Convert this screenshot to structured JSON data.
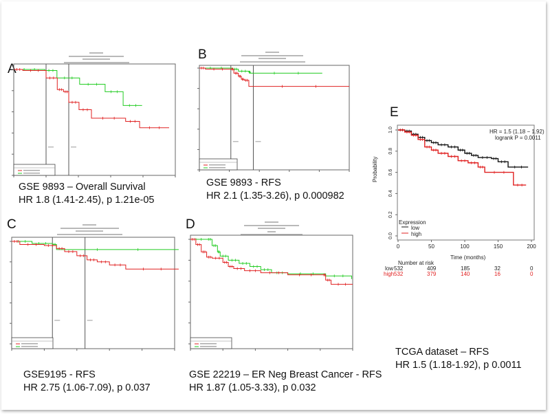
{
  "panels": [
    {
      "label": "A",
      "caption_line1": "GSE 9893 – Overall Survival",
      "caption_line2": "HR 1.8 (1.41-2.45), p 1.21e-05"
    },
    {
      "label": "B",
      "caption_line1": "GSE 9893 - RFS",
      "caption_line2": "HR 2.1 (1.35-3.26), p 0.000982"
    },
    {
      "label": "C",
      "caption_line1": "GSE9195 - RFS",
      "caption_line2": "HR 2.75 (1.06-7.09), p 0.037"
    },
    {
      "label": "D",
      "caption_line1": "GSE 22219 – ER Neg Breast Cancer - RFS",
      "caption_line2": "HR 1.87 (1.05-3.33), p 0.032"
    },
    {
      "label": "E",
      "caption_line1": "TCGA dataset – RFS",
      "caption_line2": "HR 1.5 (1.18-1.92), p 0.0011"
    }
  ],
  "colors": {
    "low_abcd": "#22cc22",
    "high": "#e02020",
    "low_e": "#111111",
    "frame": "#555555"
  },
  "chart_data": [
    {
      "type": "line",
      "panel": "A",
      "step": true,
      "xlim": [
        0,
        5000
      ],
      "ylim": [
        0,
        1
      ],
      "reference_lines_x": [
        1040,
        1770
      ],
      "series": [
        {
          "color": "#22cc22",
          "x": [
            0,
            1000,
            1390,
            2120,
            2940,
            3520,
            4130
          ],
          "y": [
            1,
            0.99,
            0.92,
            0.86,
            0.79,
            0.66,
            0.66
          ]
        },
        {
          "color": "#e02020",
          "x": [
            0,
            290,
            1040,
            1400,
            1600,
            1770,
            2100,
            2500,
            3600,
            4050,
            5000
          ],
          "y": [
            1,
            0.99,
            0.92,
            0.81,
            0.79,
            0.69,
            0.62,
            0.54,
            0.51,
            0.45,
            0.45
          ]
        }
      ]
    },
    {
      "type": "line",
      "panel": "B",
      "step": true,
      "xlim": [
        0,
        5000
      ],
      "ylim": [
        0,
        1
      ],
      "reference_lines_x": [
        1050,
        1800
      ],
      "series": [
        {
          "color": "#22cc22",
          "x": [
            0,
            1100,
            1300,
            1650,
            1700,
            4100
          ],
          "y": [
            1,
            0.99,
            0.97,
            0.96,
            0.95,
            0.95
          ]
        },
        {
          "color": "#e02020",
          "x": [
            0,
            200,
            1050,
            1150,
            1300,
            1400,
            1500,
            1650,
            5000
          ],
          "y": [
            1,
            0.99,
            0.99,
            0.95,
            0.92,
            0.89,
            0.88,
            0.82,
            0.82
          ]
        }
      ]
    },
    {
      "type": "line",
      "panel": "C",
      "step": true,
      "xlim": [
        0,
        4000
      ],
      "ylim": [
        0,
        1
      ],
      "reference_lines_x": [
        1000,
        1800
      ],
      "series": [
        {
          "color": "#22cc22",
          "x": [
            0,
            500,
            1000,
            1100,
            4100
          ],
          "y": [
            1,
            0.98,
            0.97,
            0.92,
            0.92
          ]
        },
        {
          "color": "#e02020",
          "x": [
            0,
            200,
            800,
            1100,
            1300,
            1600,
            1850,
            2100,
            2400,
            2800,
            4100
          ],
          "y": [
            1,
            0.97,
            0.96,
            0.93,
            0.9,
            0.86,
            0.82,
            0.8,
            0.77,
            0.73,
            0.73
          ]
        }
      ]
    },
    {
      "type": "line",
      "panel": "D",
      "step": true,
      "xlim": [
        0,
        300
      ],
      "ylim": [
        0,
        1
      ],
      "reference_lines_x": [],
      "series": [
        {
          "color": "#22cc22",
          "x": [
            0,
            30,
            40,
            50,
            55,
            70,
            90,
            110,
            130,
            150,
            180,
            250,
            298
          ],
          "y": [
            1,
            1,
            0.94,
            0.88,
            0.84,
            0.8,
            0.77,
            0.74,
            0.71,
            0.68,
            0.67,
            0.65,
            0.62
          ]
        },
        {
          "color": "#e02020",
          "x": [
            0,
            10,
            20,
            30,
            40,
            60,
            70,
            80,
            100,
            130,
            180,
            245,
            250,
            260,
            300
          ],
          "y": [
            1,
            0.95,
            0.88,
            0.83,
            0.82,
            0.78,
            0.74,
            0.72,
            0.7,
            0.68,
            0.66,
            0.66,
            0.61,
            0.57,
            0.57
          ]
        }
      ]
    },
    {
      "type": "line",
      "panel": "E",
      "step": true,
      "xlim": [
        0,
        200
      ],
      "ylim": [
        0,
        1
      ],
      "xlabel": "Time (months)",
      "ylabel": "Probability",
      "xticks": [
        "0",
        "50",
        "100",
        "150",
        "200"
      ],
      "yticks": [
        "0.0",
        "0.2",
        "0.4",
        "0.6",
        "0.8",
        "1.0"
      ],
      "annotation_line1": "HR = 1.5 (1.18 − 1.92)",
      "annotation_line2": "logrank P = 0.0011",
      "legend_title": "Expression",
      "legend_position": "bottom-left",
      "series": [
        {
          "name": "low",
          "color": "#111111",
          "x": [
            0,
            10,
            20,
            30,
            40,
            50,
            60,
            75,
            90,
            100,
            110,
            120,
            140,
            150,
            165,
            195
          ],
          "y": [
            1,
            0.99,
            0.96,
            0.93,
            0.9,
            0.88,
            0.86,
            0.84,
            0.81,
            0.78,
            0.76,
            0.74,
            0.73,
            0.7,
            0.65,
            0.65
          ]
        },
        {
          "name": "high",
          "color": "#e02020",
          "x": [
            0,
            10,
            20,
            30,
            40,
            50,
            60,
            75,
            90,
            105,
            120,
            130,
            173,
            192
          ],
          "y": [
            1,
            0.98,
            0.95,
            0.91,
            0.84,
            0.81,
            0.78,
            0.75,
            0.71,
            0.69,
            0.65,
            0.6,
            0.48,
            0.48
          ]
        }
      ],
      "risk_table": {
        "title": "Number at risk",
        "rows": [
          {
            "label": "low",
            "values": [
              "532",
              "409",
              "185",
              "32",
              "0"
            ]
          },
          {
            "label": "high",
            "values": [
              "532",
              "379",
              "140",
              "16",
              "0"
            ]
          }
        ]
      }
    }
  ]
}
